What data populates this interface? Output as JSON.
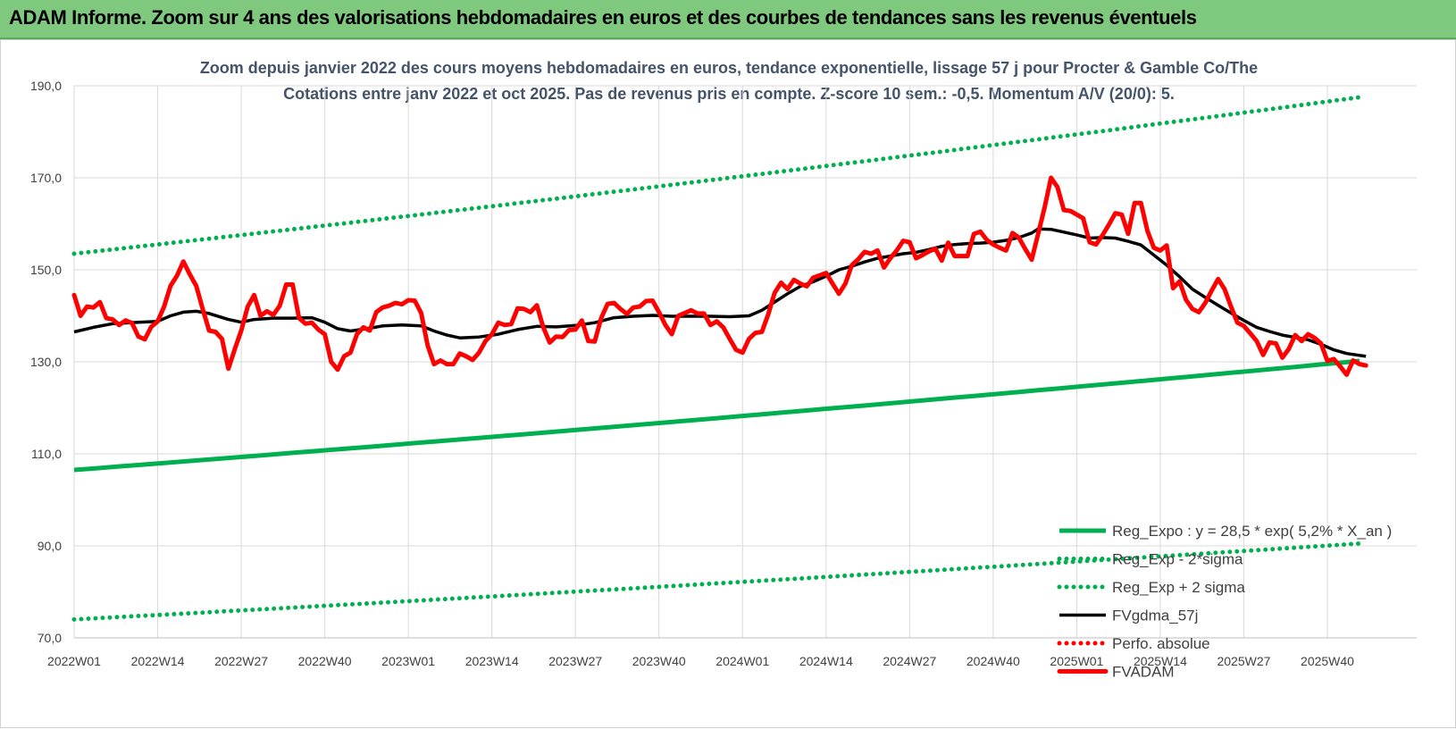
{
  "banner": {
    "title": "ADAM Informe. Zoom sur 4 ans des valorisations hebdomadaires en euros et des courbes de tendances sans les revenus éventuels",
    "color": "#7fc97f"
  },
  "chart_data": {
    "type": "line",
    "title_lines": [
      "Zoom depuis janvier 2022 des cours moyens hebdomadaires en euros, tendance exponentielle, lissage 57 j pour Procter & Gamble Co/The",
      "Cotations entre janv 2022 et oct 2025. Pas de revenus pris en compte. Z-score 10 sem.: -0,5.  Momentum A/V (20/0): 5."
    ],
    "y_ticks": [
      "70,0",
      "90,0",
      "110,0",
      "130,0",
      "150,0",
      "170,0",
      "190,0"
    ],
    "y_tick_values": [
      70,
      90,
      110,
      130,
      150,
      170,
      190
    ],
    "ylim": [
      70,
      190
    ],
    "x_ticks": [
      "2022W01",
      "2022W14",
      "2022W27",
      "2022W40",
      "2023W01",
      "2023W14",
      "2023W27",
      "2023W40",
      "2024W01",
      "2024W14",
      "2024W27",
      "2024W40",
      "2025W01",
      "2025W14",
      "2025W27",
      "2025W40"
    ],
    "x_tick_weeks": [
      0,
      13,
      26,
      39,
      52,
      65,
      78,
      91,
      104,
      117,
      130,
      143,
      156,
      169,
      182,
      195
    ],
    "x_week_range": [
      0,
      200
    ],
    "grid": true,
    "legend_placement": "bottom-right",
    "series": [
      {
        "name": "Reg_Expo : y = 28,5 * exp( 5,2% *  X_an )",
        "style": "solid",
        "color": "#00b050",
        "start": 106.5,
        "end": 130.2
      },
      {
        "name": "Reg_Exp - 2*sigma",
        "style": "dotted",
        "color": "#00b050",
        "start": 74.0,
        "end": 90.5
      },
      {
        "name": "Reg_Exp + 2 sigma",
        "style": "dotted",
        "color": "#00b050",
        "start": 153.5,
        "end": 187.5
      },
      {
        "name": "FVgdma_57j",
        "style": "solid",
        "color": "#000000",
        "points": [
          [
            0,
            136.5
          ],
          [
            3,
            137.5
          ],
          [
            6,
            138.3
          ],
          [
            10,
            138.6
          ],
          [
            13,
            138.8
          ],
          [
            15,
            140
          ],
          [
            17,
            140.8
          ],
          [
            19,
            141
          ],
          [
            21,
            140.5
          ],
          [
            24,
            139.2
          ],
          [
            26,
            138.6
          ],
          [
            28,
            139.2
          ],
          [
            31,
            139.5
          ],
          [
            34,
            139.5
          ],
          [
            37,
            139.6
          ],
          [
            39,
            138.6
          ],
          [
            41,
            137.2
          ],
          [
            43,
            136.7
          ],
          [
            46,
            137.3
          ],
          [
            48,
            137.8
          ],
          [
            51,
            138
          ],
          [
            54,
            137.8
          ],
          [
            56,
            136.7
          ],
          [
            58,
            135.8
          ],
          [
            60,
            135.2
          ],
          [
            63,
            135.4
          ],
          [
            66,
            136
          ],
          [
            69,
            137
          ],
          [
            72,
            137.7
          ],
          [
            75,
            137.6
          ],
          [
            78,
            137.9
          ],
          [
            81,
            138.5
          ],
          [
            84,
            139.6
          ],
          [
            87,
            139.9
          ],
          [
            90,
            140.1
          ],
          [
            93,
            139.9
          ],
          [
            96,
            139.9
          ],
          [
            99,
            139.9
          ],
          [
            102,
            139.8
          ],
          [
            105,
            140
          ],
          [
            107,
            141.2
          ],
          [
            109,
            143
          ],
          [
            111,
            144.8
          ],
          [
            113,
            146.4
          ],
          [
            115,
            147.4
          ],
          [
            117,
            148.6
          ],
          [
            119,
            150
          ],
          [
            121,
            150.8
          ],
          [
            123,
            151.7
          ],
          [
            125,
            152.5
          ],
          [
            127,
            153
          ],
          [
            129,
            153.5
          ],
          [
            131,
            153.8
          ],
          [
            133,
            154.4
          ],
          [
            135,
            155.1
          ],
          [
            137,
            155.5
          ],
          [
            139,
            155.7
          ],
          [
            141,
            155.8
          ],
          [
            143,
            156
          ],
          [
            145,
            156.4
          ],
          [
            147,
            157
          ],
          [
            149,
            158
          ],
          [
            150,
            158.9
          ],
          [
            152,
            158.8
          ],
          [
            154,
            158.2
          ],
          [
            156,
            157.6
          ],
          [
            158,
            156.9
          ],
          [
            160,
            157
          ],
          [
            162,
            156.9
          ],
          [
            164,
            156.2
          ],
          [
            166,
            155.4
          ],
          [
            168,
            153.2
          ],
          [
            170,
            151
          ],
          [
            172,
            148.5
          ],
          [
            174,
            145.8
          ],
          [
            176,
            144
          ],
          [
            178,
            142.3
          ],
          [
            180,
            140.6
          ],
          [
            182,
            139
          ],
          [
            184,
            137.5
          ],
          [
            186,
            136.6
          ],
          [
            188,
            135.8
          ],
          [
            190,
            135.3
          ],
          [
            192,
            134.8
          ],
          [
            194,
            133.8
          ],
          [
            196,
            132.6
          ],
          [
            198,
            131.8
          ],
          [
            200,
            131.4
          ],
          [
            201,
            131.2
          ]
        ]
      },
      {
        "name": "Perfo. absolue",
        "style": "dotted",
        "color": "#ff0000",
        "points": []
      },
      {
        "name": "FVADAM",
        "style": "solid",
        "color": "#ff0000",
        "points": [
          [
            0,
            144.5
          ],
          [
            1,
            140
          ],
          [
            2,
            142
          ],
          [
            3,
            141.8
          ],
          [
            4,
            143
          ],
          [
            5,
            139.5
          ],
          [
            6,
            139.2
          ],
          [
            7,
            138
          ],
          [
            8,
            139
          ],
          [
            9,
            138.4
          ],
          [
            10,
            135.5
          ],
          [
            11,
            134.9
          ],
          [
            12,
            137.6
          ],
          [
            13,
            138.8
          ],
          [
            14,
            142
          ],
          [
            15,
            146.5
          ],
          [
            16,
            148.7
          ],
          [
            17,
            151.8
          ],
          [
            18,
            149
          ],
          [
            19,
            146.5
          ],
          [
            20,
            141.5
          ],
          [
            21,
            136.8
          ],
          [
            22,
            136.5
          ],
          [
            23,
            135
          ],
          [
            24,
            128.5
          ],
          [
            25,
            132.8
          ],
          [
            26,
            136.8
          ],
          [
            27,
            142
          ],
          [
            28,
            144.5
          ],
          [
            29,
            140
          ],
          [
            30,
            141
          ],
          [
            31,
            140.2
          ],
          [
            32,
            142.2
          ],
          [
            33,
            146.8
          ],
          [
            34,
            146.8
          ],
          [
            35,
            139.5
          ],
          [
            36,
            138.3
          ],
          [
            37,
            138.5
          ],
          [
            38,
            137
          ],
          [
            39,
            136
          ],
          [
            40,
            130
          ],
          [
            41,
            128.3
          ],
          [
            42,
            131.2
          ],
          [
            43,
            132
          ],
          [
            44,
            136
          ],
          [
            45,
            137.5
          ],
          [
            46,
            136.8
          ],
          [
            47,
            140.8
          ],
          [
            48,
            141.8
          ],
          [
            49,
            142.2
          ],
          [
            50,
            142.8
          ],
          [
            51,
            142.5
          ],
          [
            52,
            143.4
          ],
          [
            53,
            143.3
          ],
          [
            54,
            140.6
          ],
          [
            55,
            133.6
          ],
          [
            56,
            129.5
          ],
          [
            57,
            130.3
          ],
          [
            58,
            129.5
          ],
          [
            59,
            129.5
          ],
          [
            60,
            131.8
          ],
          [
            61,
            131.2
          ],
          [
            62,
            130.4
          ],
          [
            63,
            132
          ],
          [
            64,
            134.5
          ],
          [
            65,
            136
          ],
          [
            66,
            138.5
          ],
          [
            67,
            138
          ],
          [
            68,
            138.2
          ],
          [
            69,
            141.6
          ],
          [
            70,
            141.5
          ],
          [
            71,
            140.8
          ],
          [
            72,
            142.3
          ],
          [
            73,
            137.5
          ],
          [
            74,
            134.2
          ],
          [
            75,
            135.5
          ],
          [
            76,
            135.4
          ],
          [
            77,
            136.9
          ],
          [
            78,
            137
          ],
          [
            79,
            139
          ],
          [
            80,
            134.5
          ],
          [
            81,
            134.4
          ],
          [
            82,
            139.5
          ],
          [
            83,
            142.6
          ],
          [
            84,
            142.8
          ],
          [
            85,
            141.5
          ],
          [
            86,
            140.4
          ],
          [
            87,
            141.8
          ],
          [
            88,
            142
          ],
          [
            89,
            143.2
          ],
          [
            90,
            143.3
          ],
          [
            91,
            140.8
          ],
          [
            92,
            138
          ],
          [
            93,
            136
          ],
          [
            94,
            140
          ],
          [
            95,
            140.6
          ],
          [
            96,
            141.2
          ],
          [
            97,
            140.5
          ],
          [
            98,
            140.5
          ],
          [
            99,
            138
          ],
          [
            100,
            138.8
          ],
          [
            101,
            137.5
          ],
          [
            102,
            135
          ],
          [
            103,
            132.6
          ],
          [
            104,
            132
          ],
          [
            105,
            135
          ],
          [
            106,
            136.3
          ],
          [
            107,
            136.5
          ],
          [
            108,
            140.3
          ],
          [
            109,
            145
          ],
          [
            110,
            147.2
          ],
          [
            111,
            145.8
          ],
          [
            112,
            147.8
          ],
          [
            113,
            147
          ],
          [
            114,
            146.4
          ],
          [
            115,
            148.3
          ],
          [
            116,
            148.8
          ],
          [
            117,
            149.3
          ],
          [
            118,
            147
          ],
          [
            119,
            144.8
          ],
          [
            120,
            147
          ],
          [
            121,
            151
          ],
          [
            122,
            152.3
          ],
          [
            123,
            153.9
          ],
          [
            124,
            153.5
          ],
          [
            125,
            154.2
          ],
          [
            126,
            150.5
          ],
          [
            127,
            152.5
          ],
          [
            128,
            154.2
          ],
          [
            129,
            156.3
          ],
          [
            130,
            156
          ],
          [
            131,
            152.5
          ],
          [
            132,
            153.2
          ],
          [
            133,
            154
          ],
          [
            134,
            154.6
          ],
          [
            135,
            152
          ],
          [
            136,
            155.9
          ],
          [
            137,
            153
          ],
          [
            138,
            153
          ],
          [
            139,
            153
          ],
          [
            140,
            157.8
          ],
          [
            141,
            158.3
          ],
          [
            142,
            156.5
          ],
          [
            143,
            155.5
          ],
          [
            144,
            154.8
          ],
          [
            145,
            154.2
          ],
          [
            146,
            158
          ],
          [
            147,
            157
          ],
          [
            148,
            154.5
          ],
          [
            149,
            152.2
          ],
          [
            150,
            157.8
          ],
          [
            151,
            163.5
          ],
          [
            152,
            170
          ],
          [
            153,
            168
          ],
          [
            154,
            163
          ],
          [
            155,
            162.8
          ],
          [
            156,
            162
          ],
          [
            157,
            161.2
          ],
          [
            158,
            156
          ],
          [
            159,
            155.5
          ],
          [
            160,
            157.5
          ],
          [
            161,
            159.8
          ],
          [
            162,
            162.3
          ],
          [
            163,
            162
          ],
          [
            164,
            157.8
          ],
          [
            165,
            164.5
          ],
          [
            166,
            164.5
          ],
          [
            167,
            158.5
          ],
          [
            168,
            154.8
          ],
          [
            169,
            154.2
          ],
          [
            170,
            155.3
          ],
          [
            171,
            146
          ],
          [
            172,
            147.5
          ],
          [
            173,
            143.5
          ],
          [
            174,
            141.5
          ],
          [
            175,
            140.8
          ],
          [
            176,
            142.8
          ],
          [
            177,
            145.5
          ],
          [
            178,
            148
          ],
          [
            179,
            145.8
          ],
          [
            180,
            142
          ],
          [
            181,
            138.5
          ],
          [
            182,
            137.8
          ],
          [
            183,
            136.2
          ],
          [
            184,
            134.5
          ],
          [
            185,
            131.5
          ],
          [
            186,
            134.2
          ],
          [
            187,
            134
          ],
          [
            188,
            130.9
          ],
          [
            189,
            132.8
          ],
          [
            190,
            135.8
          ],
          [
            191,
            134.5
          ],
          [
            192,
            136
          ],
          [
            193,
            135.2
          ],
          [
            194,
            134
          ],
          [
            195,
            130.2
          ],
          [
            196,
            130.6
          ],
          [
            197,
            129
          ],
          [
            198,
            127.2
          ],
          [
            199,
            130.3
          ],
          [
            200,
            129.5
          ],
          [
            201,
            129.2
          ]
        ]
      }
    ]
  }
}
